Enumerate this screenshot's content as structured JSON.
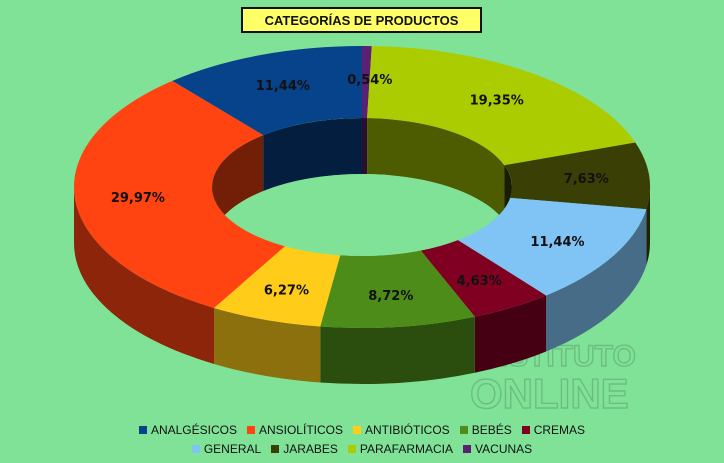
{
  "title": "CATEGORÍAS DE PRODUCTOS",
  "watermark": {
    "line1": "INSTITUTO",
    "line2": "ONLINE"
  },
  "chart_data": {
    "type": "pie",
    "variant": "3d-doughnut",
    "title": "CATEGORÍAS DE PRODUCTOS",
    "legend_position": "bottom",
    "slices": [
      {
        "name": "VACUNAS",
        "value": 0.54,
        "label": "0,54%",
        "color": "#5b1f73"
      },
      {
        "name": "PARAFARMACIA",
        "value": 19.35,
        "label": "19,35%",
        "color": "#aacc00"
      },
      {
        "name": "JARABES",
        "value": 7.63,
        "label": "7,63%",
        "color": "#3a3f06"
      },
      {
        "name": "GENERAL",
        "value": 11.44,
        "label": "11,44%",
        "color": "#80c4f5"
      },
      {
        "name": "CREMAS",
        "value": 4.63,
        "label": "4,63%",
        "color": "#800022"
      },
      {
        "name": "BEBÉS",
        "value": 8.72,
        "label": "8,72%",
        "color": "#4e8c1a"
      },
      {
        "name": "ANTIBIÓTICOS",
        "value": 6.27,
        "label": "6,27%",
        "color": "#ffcc1a"
      },
      {
        "name": "ANSIOLÍTICOS",
        "value": 29.97,
        "label": "29,97%",
        "color": "#ff4411"
      },
      {
        "name": "ANALGÉSICOS",
        "value": 11.44,
        "label": "11,44%",
        "color": "#07438a"
      }
    ],
    "legend": [
      [
        "ANALGÉSICOS",
        "ANSIOLÍTICOS",
        "ANTIBIÓTICOS",
        "BEBÉS",
        "CREMAS"
      ],
      [
        "GENERAL",
        "JARABES",
        "PARAFARMACIA",
        "VACUNAS"
      ]
    ]
  }
}
